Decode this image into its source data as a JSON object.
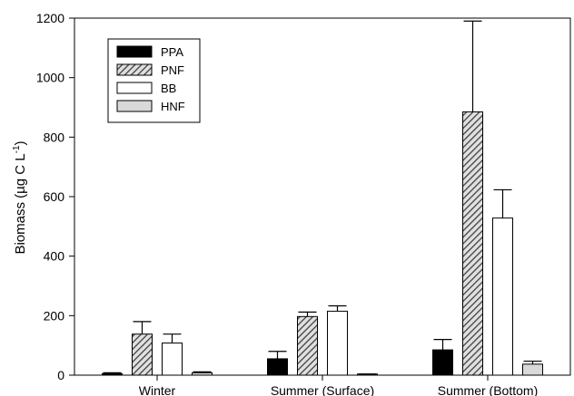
{
  "chart_data": {
    "type": "bar",
    "title": "",
    "xlabel": "",
    "ylabel": "Biomass (µg C L",
    "ylabel_superscript": "-1",
    "ylabel_close": ")",
    "categories": [
      "Winter",
      "Summer (Surface)",
      "Summer (Bottom)"
    ],
    "ylim": [
      0,
      1200
    ],
    "yticks": [
      0,
      200,
      400,
      600,
      800,
      1000,
      1200
    ],
    "grid": false,
    "legend_position": "top-left",
    "error_bars": "upper",
    "series": [
      {
        "name": "PPA",
        "fill": "black",
        "values": [
          5,
          55,
          85
        ],
        "errors": [
          3,
          25,
          35
        ]
      },
      {
        "name": "PNF",
        "fill": "hatched",
        "values": [
          138,
          197,
          885
        ],
        "errors": [
          42,
          15,
          305
        ]
      },
      {
        "name": "BB",
        "fill": "white",
        "values": [
          108,
          215,
          528
        ],
        "errors": [
          30,
          18,
          95
        ]
      },
      {
        "name": "HNF",
        "fill": "lightgray",
        "values": [
          8,
          3,
          37
        ],
        "errors": [
          3,
          1,
          10
        ]
      }
    ],
    "colors": {
      "black": "#000000",
      "white": "#ffffff",
      "lightgray": "#d9d9d9",
      "hatch": "#404040",
      "hatch_bg": "#e0e0e0"
    }
  }
}
